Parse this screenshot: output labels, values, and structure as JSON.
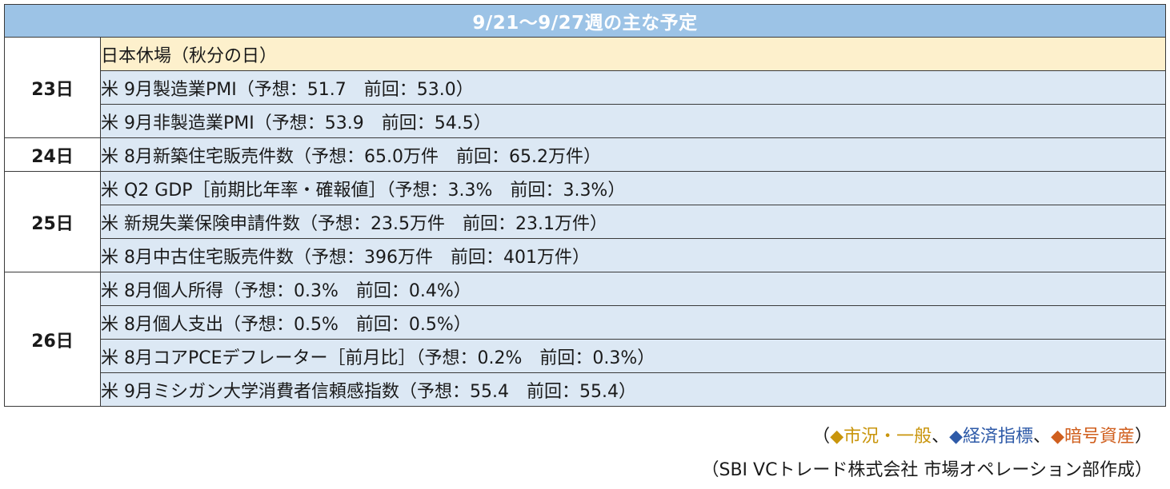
{
  "title": "9/21～9/27週の主な予定",
  "days": [
    {
      "day": "23日",
      "events": [
        "日本休場（秋分の日）",
        "米 9月製造業PMI（予想：51.7　前回：53.0）",
        "米 9月非製造業PMI（予想：53.9　前回：54.5）"
      ]
    },
    {
      "day": "24日",
      "events": [
        "米 8月新築住宅販売件数（予想：65.0万件　前回：65.2万件）"
      ]
    },
    {
      "day": "25日",
      "events": [
        "米 Q2 GDP［前期比年率・確報値］（予想：3.3%　前回：3.3%）",
        "米 新規失業保険申請件数（予想：23.5万件　前回：23.1万件）",
        "米 8月中古住宅販売件数（予想：396万件　前回：401万件）"
      ]
    },
    {
      "day": "26日",
      "events": [
        "米 8月個人所得（予想：0.3%　前回：0.4%）",
        "米 8月個人支出（予想：0.5%　前回：0.5%）",
        "米 8月コアPCEデフレーター［前月比］（予想：0.2%　前回：0.3%）",
        "米 9月ミシガン大学消費者信頼感指数（予想：55.4　前回：55.4）"
      ]
    }
  ],
  "legend": {
    "open": "（",
    "general": "◆市況・一般",
    "sep1": "、",
    "economic": "◆経済指標",
    "sep2": "、",
    "crypto": "◆暗号資産",
    "close": "）"
  },
  "credit": "（SBI VCトレード株式会社 市場オペレーション部作成）",
  "colors": {
    "header_bg": "#9cc3e6",
    "row_bg": "#dce8f4",
    "holiday_bg": "#fdf0cc",
    "legend_general": "#c9950c",
    "legend_economic": "#2e5aa8",
    "legend_crypto": "#d05f1e"
  }
}
